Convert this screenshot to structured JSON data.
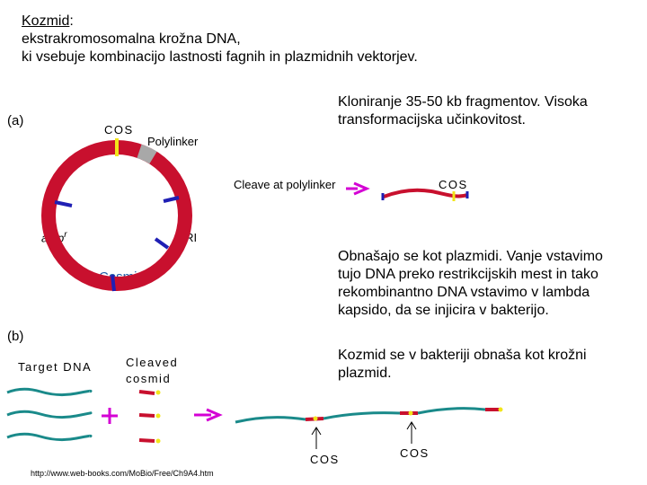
{
  "header": {
    "term": "Kozmid",
    "colon": ":",
    "line2": "ekstrakromosomalna krožna DNA,",
    "line3": "ki vsebuje kombinacijo lastnosti fagnih in plazmidnih vektorjev."
  },
  "notes": {
    "note1": [
      "Kloniranje 35-50 kb fragmentov. Visoka",
      "transformacijska učinkovitost."
    ],
    "note2": [
      "Obnašajo se kot plazmidi. Vanje vstavimo",
      "tujo DNA preko restrikcijskih mest in tako",
      "rekombinantno DNA vstavimo v lambda",
      "kapsido, da se injicira v bakterijo."
    ],
    "note3": [
      "Kozmid se v bakteriji obnaša kot krožni",
      "plazmid."
    ]
  },
  "panel_a": {
    "label": "(a)",
    "cos": "COS",
    "polylinker": "Polylinker",
    "cleave_label": "Cleave at polylinker",
    "cos_right": "COS",
    "amp": "amp",
    "amp_sup": "r",
    "ori": "ORI",
    "cosmid": "Cosmid"
  },
  "panel_b": {
    "label": "(b)",
    "target_dna": "Target DNA",
    "cleaved_line1": "Cleaved",
    "cleaved_line2": "cosmid",
    "plus": "+",
    "cos_left": "COS",
    "cos_right": "COS"
  },
  "footer": {
    "url": "http://www.web-books.com/MoBio/Free/Ch9A4.htm"
  },
  "colors": {
    "ring": "#c8102e",
    "strand": "#1a8a8a",
    "site": "#1f1fb4",
    "cos_mark": "#f2e51a",
    "arrow": "#d400d4"
  }
}
